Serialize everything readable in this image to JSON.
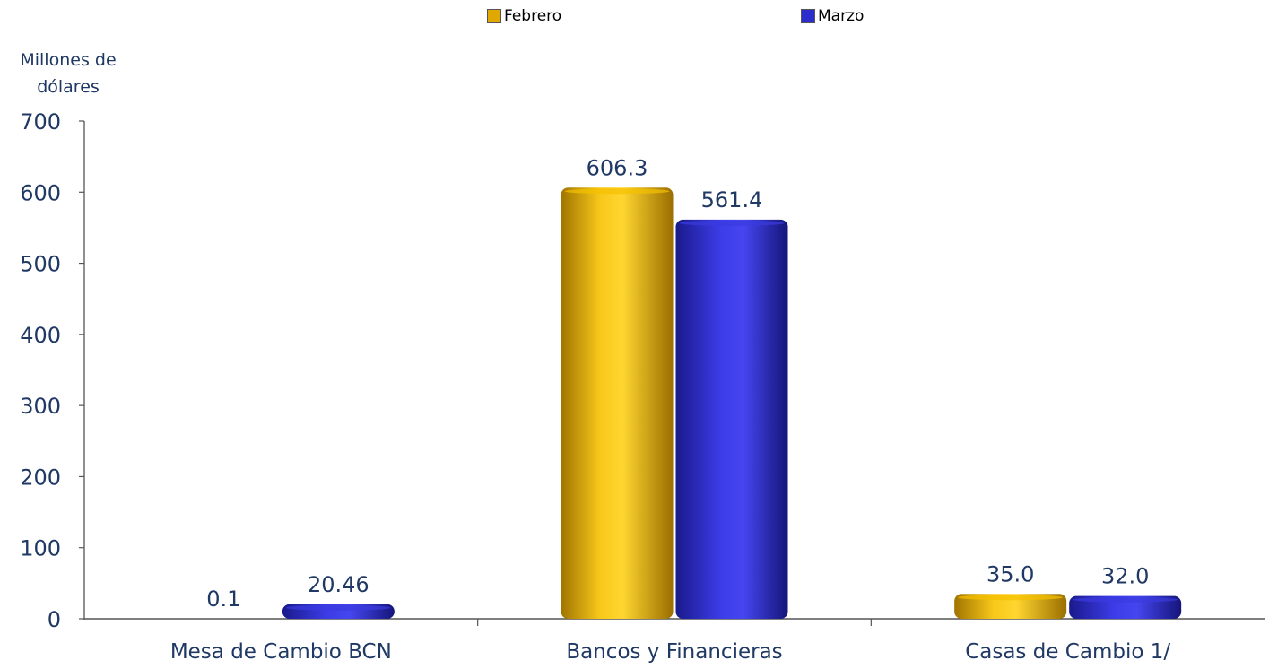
{
  "chart_data": {
    "type": "bar",
    "ylabel": "Millones de dólares",
    "ylabel_lines": [
      "Millones de",
      "dólares"
    ],
    "categories": [
      "Mesa de Cambio BCN",
      "Bancos y Financieras",
      "Casas de Cambio 1/"
    ],
    "series": [
      {
        "name": "Febrero",
        "values": [
          0.1,
          606.3,
          35.0
        ],
        "labels": [
          "0.1",
          "606.3",
          "35.0"
        ],
        "color": "#e0a800"
      },
      {
        "name": "Marzo",
        "values": [
          20.46,
          561.4,
          32.0
        ],
        "labels": [
          "20.46",
          "561.4",
          "32.0"
        ],
        "color": "#2c2ccc"
      }
    ],
    "ylim": [
      0,
      700
    ],
    "yticks": [
      "0",
      "100",
      "200",
      "300",
      "400",
      "500",
      "600",
      "700"
    ],
    "legend_position": "top",
    "grid": false
  }
}
